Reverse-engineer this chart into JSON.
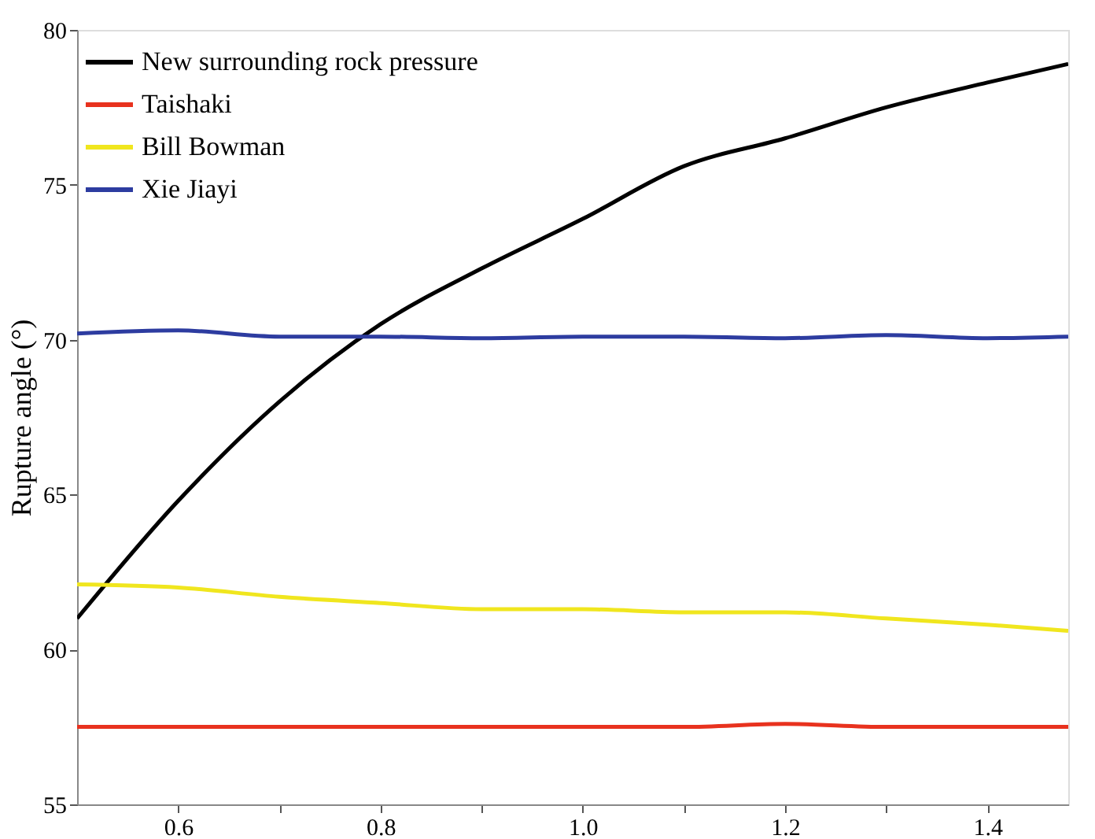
{
  "chart_data": {
    "type": "line",
    "ylabel": "Rupture angle (°)",
    "x": [
      0.5,
      0.6,
      0.7,
      0.8,
      0.9,
      1.0,
      1.1,
      1.2,
      1.3,
      1.4,
      1.48
    ],
    "series": [
      {
        "name": "New surrounding rock pressure",
        "color": "#000000",
        "values": [
          61.0,
          64.8,
          68.0,
          70.5,
          72.3,
          73.9,
          75.6,
          76.5,
          77.5,
          78.3,
          78.9
        ]
      },
      {
        "name": "Taishaki",
        "color": "#e8321e",
        "values": [
          57.5,
          57.5,
          57.5,
          57.5,
          57.5,
          57.5,
          57.5,
          57.6,
          57.5,
          57.5,
          57.5
        ]
      },
      {
        "name": "Bill Bowman",
        "color": "#f0e61e",
        "values": [
          62.1,
          62.0,
          61.7,
          61.5,
          61.3,
          61.3,
          61.2,
          61.2,
          61.0,
          60.8,
          60.6
        ]
      },
      {
        "name": "Xie Jiayi",
        "color": "#2d3ca0",
        "values": [
          70.2,
          70.3,
          70.1,
          70.1,
          70.05,
          70.1,
          70.1,
          70.05,
          70.15,
          70.05,
          70.1
        ]
      }
    ],
    "xlim": [
      0.5,
      1.48
    ],
    "xticks": [
      {
        "value": 0.6,
        "label": "0.6"
      },
      {
        "value": 0.7,
        "label": null
      },
      {
        "value": 0.8,
        "label": "0.8"
      },
      {
        "value": 0.9,
        "label": null
      },
      {
        "value": 1.0,
        "label": "1.0"
      },
      {
        "value": 1.1,
        "label": null
      },
      {
        "value": 1.2,
        "label": "1.2"
      },
      {
        "value": 1.3,
        "label": null
      },
      {
        "value": 1.4,
        "label": "1.4"
      }
    ],
    "ylim": [
      55,
      80
    ],
    "yticks": [
      55,
      60,
      65,
      70,
      75,
      80
    ],
    "grid": false,
    "legend": "top left",
    "marker": "none",
    "line_style": "solid"
  }
}
